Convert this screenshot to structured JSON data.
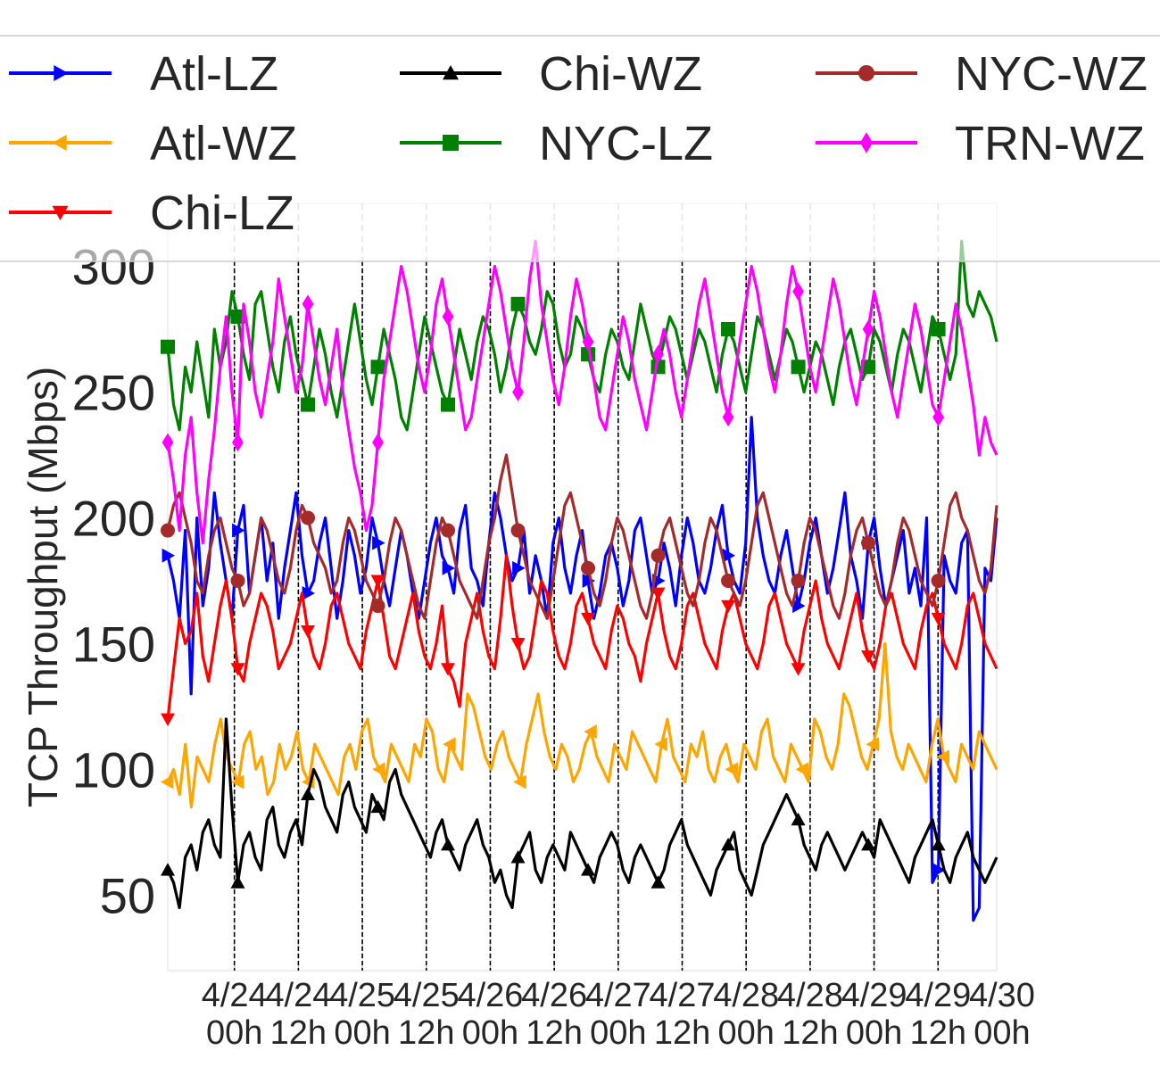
{
  "chart_data": {
    "type": "line",
    "title": "",
    "xlabel": "",
    "ylabel": "TCP Throughput (Mbps)",
    "ylim": [
      20,
      325
    ],
    "yticks": [
      50,
      100,
      150,
      200,
      250,
      300
    ],
    "xticks": [
      {
        "x": 0,
        "line1": "4/24",
        "line2": "00h"
      },
      {
        "x": 12,
        "line1": "4/24",
        "line2": "12h"
      },
      {
        "x": 24,
        "line1": "4/25",
        "line2": "00h"
      },
      {
        "x": 36,
        "line1": "4/25",
        "line2": "12h"
      },
      {
        "x": 48,
        "line1": "4/26",
        "line2": "00h"
      },
      {
        "x": 60,
        "line1": "4/26",
        "line2": "12h"
      },
      {
        "x": 72,
        "line1": "4/27",
        "line2": "00h"
      },
      {
        "x": 84,
        "line1": "4/27",
        "line2": "12h"
      },
      {
        "x": 96,
        "line1": "4/28",
        "line2": "00h"
      },
      {
        "x": 108,
        "line1": "4/28",
        "line2": "12h"
      },
      {
        "x": 120,
        "line1": "4/29",
        "line2": "00h"
      },
      {
        "x": 132,
        "line1": "4/29",
        "line2": "12h"
      },
      {
        "x": 144,
        "line1": "4/30",
        "line2": "00h"
      }
    ],
    "xlim": [
      -12.5,
      143
    ],
    "midnight_lines_x": [
      0,
      12,
      24,
      36,
      48,
      60,
      72,
      84,
      96,
      108,
      120,
      132,
      144
    ],
    "grid": true,
    "legend_position": "top",
    "series": [
      {
        "name": "Atl-LZ",
        "color": "#0000ff",
        "marker": "triangle-right",
        "values": [
          185,
          175,
          160,
          195,
          130,
          200,
          165,
          180,
          210,
          190,
          175,
          160,
          195,
          205,
          170,
          185,
          200,
          175,
          190,
          160,
          180,
          195,
          210,
          185,
          170,
          175,
          190,
          200,
          180,
          160,
          175,
          195,
          185,
          170,
          180,
          200,
          190,
          175,
          165,
          180,
          195,
          185,
          170,
          160,
          175,
          190,
          200,
          185,
          180,
          170,
          195,
          205,
          180,
          175,
          165,
          190,
          210,
          200,
          185,
          175,
          180,
          195,
          170,
          185,
          175,
          160,
          190,
          200,
          180,
          170,
          185,
          195,
          175,
          160,
          170,
          185,
          190,
          180,
          165,
          175,
          195,
          200,
          185,
          170,
          175,
          190,
          180,
          165,
          185,
          200,
          190,
          175,
          170,
          180,
          195,
          205,
          185,
          175,
          170,
          190,
          240,
          200,
          185,
          175,
          170,
          185,
          195,
          180,
          165,
          175,
          190,
          200,
          185,
          170,
          180,
          195,
          210,
          185,
          175,
          160,
          190,
          200,
          180,
          165,
          175,
          185,
          195,
          170,
          180,
          165,
          200,
          55,
          60,
          185,
          175,
          170,
          190,
          195,
          40,
          45,
          180,
          175,
          200
        ]
      },
      {
        "name": "Atl-WZ",
        "color": "#ffa500",
        "marker": "triangle-left",
        "values": [
          95,
          100,
          90,
          110,
          85,
          105,
          100,
          95,
          110,
          120,
          105,
          100,
          95,
          110,
          115,
          100,
          105,
          90,
          95,
          110,
          100,
          105,
          115,
          100,
          95,
          110,
          105,
          100,
          95,
          90,
          105,
          110,
          100,
          115,
          120,
          105,
          100,
          95,
          110,
          105,
          100,
          95,
          110,
          105,
          120,
          115,
          100,
          95,
          110,
          105,
          100,
          130,
          125,
          115,
          105,
          100,
          110,
          115,
          105,
          100,
          95,
          110,
          120,
          130,
          115,
          105,
          100,
          110,
          105,
          95,
          100,
          110,
          115,
          105,
          100,
          95,
          110,
          105,
          100,
          115,
          110,
          105,
          100,
          95,
          110,
          120,
          105,
          100,
          95,
          110,
          105,
          115,
          100,
          95,
          105,
          110,
          100,
          95,
          110,
          105,
          100,
          115,
          120,
          105,
          100,
          95,
          110,
          105,
          100,
          95,
          120,
          115,
          105,
          100,
          110,
          130,
          125,
          115,
          105,
          100,
          110,
          120,
          150,
          115,
          105,
          100,
          110,
          105,
          100,
          95,
          110,
          120,
          105,
          100,
          95,
          110,
          105,
          100,
          115,
          110,
          105,
          100
        ]
      },
      {
        "name": "Chi-LZ",
        "color": "#ff0000",
        "marker": "triangle-down",
        "values": [
          120,
          140,
          160,
          150,
          155,
          170,
          145,
          135,
          150,
          165,
          175,
          160,
          140,
          135,
          150,
          160,
          170,
          165,
          155,
          140,
          145,
          150,
          160,
          170,
          155,
          145,
          140,
          150,
          165,
          170,
          160,
          150,
          145,
          140,
          155,
          165,
          175,
          160,
          145,
          140,
          150,
          160,
          170,
          155,
          145,
          140,
          150,
          165,
          140,
          135,
          125,
          150,
          160,
          170,
          155,
          145,
          140,
          160,
          185,
          165,
          150,
          140,
          145,
          160,
          175,
          170,
          155,
          145,
          140,
          150,
          165,
          170,
          160,
          150,
          145,
          140,
          155,
          165,
          160,
          150,
          145,
          135,
          150,
          160,
          170,
          155,
          145,
          140,
          150,
          165,
          170,
          160,
          150,
          145,
          140,
          155,
          165,
          170,
          160,
          150,
          145,
          140,
          150,
          165,
          170,
          160,
          150,
          145,
          140,
          155,
          165,
          175,
          160,
          150,
          145,
          140,
          150,
          160,
          170,
          155,
          145,
          140,
          150,
          165,
          170,
          160,
          150,
          145,
          140,
          155,
          165,
          170,
          160,
          150,
          145,
          140,
          150,
          165,
          170,
          160,
          150,
          145,
          140
        ]
      },
      {
        "name": "Chi-WZ",
        "color": "#000000",
        "marker": "triangle-up",
        "values": [
          60,
          55,
          45,
          65,
          70,
          60,
          75,
          80,
          70,
          65,
          120,
          85,
          55,
          70,
          75,
          65,
          60,
          80,
          85,
          70,
          65,
          75,
          80,
          70,
          90,
          100,
          95,
          85,
          80,
          75,
          90,
          95,
          85,
          80,
          75,
          90,
          85,
          80,
          95,
          100,
          90,
          85,
          80,
          75,
          70,
          65,
          75,
          80,
          70,
          65,
          60,
          70,
          75,
          80,
          70,
          65,
          55,
          60,
          50,
          45,
          65,
          70,
          75,
          60,
          55,
          65,
          70,
          65,
          60,
          75,
          70,
          65,
          60,
          55,
          65,
          70,
          75,
          70,
          60,
          55,
          65,
          70,
          65,
          60,
          55,
          60,
          70,
          75,
          80,
          70,
          65,
          60,
          55,
          50,
          60,
          65,
          70,
          75,
          60,
          55,
          50,
          60,
          70,
          75,
          80,
          85,
          90,
          85,
          80,
          70,
          65,
          60,
          70,
          75,
          70,
          65,
          60,
          65,
          70,
          75,
          70,
          65,
          80,
          75,
          70,
          65,
          60,
          55,
          65,
          70,
          75,
          80,
          70,
          60,
          55,
          65,
          70,
          75,
          65,
          60,
          55,
          60,
          65
        ]
      },
      {
        "name": "NYC-LZ",
        "color": "#008000",
        "marker": "square",
        "values": [
          268,
          245,
          235,
          260,
          250,
          270,
          255,
          240,
          275,
          260,
          270,
          290,
          280,
          265,
          255,
          285,
          290,
          275,
          260,
          250,
          270,
          280,
          265,
          255,
          245,
          260,
          275,
          265,
          250,
          240,
          255,
          270,
          285,
          270,
          255,
          245,
          260,
          275,
          265,
          255,
          240,
          235,
          250,
          265,
          280,
          270,
          260,
          250,
          245,
          260,
          275,
          265,
          255,
          270,
          280,
          275,
          265,
          250,
          260,
          275,
          285,
          280,
          270,
          265,
          275,
          290,
          285,
          270,
          260,
          265,
          280,
          275,
          265,
          255,
          250,
          265,
          275,
          270,
          260,
          255,
          270,
          285,
          275,
          265,
          260,
          270,
          280,
          275,
          265,
          255,
          265,
          275,
          270,
          260,
          250,
          265,
          275,
          270,
          260,
          250,
          265,
          280,
          275,
          265,
          255,
          265,
          275,
          270,
          260,
          250,
          260,
          270,
          265,
          255,
          245,
          260,
          270,
          275,
          265,
          255,
          260,
          275,
          270,
          260,
          250,
          265,
          275,
          270,
          260,
          250,
          265,
          280,
          275,
          265,
          255,
          265,
          310,
          285,
          280,
          290,
          285,
          280,
          270
        ]
      },
      {
        "name": "NYC-WZ",
        "color": "#a52a2a",
        "marker": "circle",
        "values": [
          195,
          205,
          210,
          200,
          190,
          175,
          170,
          185,
          195,
          200,
          190,
          180,
          175,
          165,
          170,
          185,
          200,
          195,
          185,
          175,
          170,
          180,
          195,
          205,
          200,
          190,
          185,
          180,
          170,
          175,
          190,
          200,
          195,
          185,
          175,
          170,
          165,
          175,
          190,
          200,
          195,
          185,
          175,
          165,
          160,
          175,
          190,
          200,
          195,
          185,
          175,
          170,
          165,
          160,
          175,
          190,
          200,
          215,
          225,
          210,
          195,
          185,
          175,
          170,
          165,
          160,
          175,
          190,
          205,
          210,
          200,
          190,
          180,
          170,
          165,
          175,
          190,
          200,
          195,
          185,
          175,
          165,
          160,
          170,
          185,
          195,
          200,
          190,
          180,
          170,
          165,
          175,
          190,
          200,
          195,
          185,
          175,
          170,
          165,
          175,
          190,
          205,
          210,
          200,
          190,
          180,
          170,
          165,
          175,
          190,
          200,
          195,
          185,
          175,
          165,
          160,
          170,
          185,
          195,
          200,
          190,
          180,
          170,
          165,
          175,
          190,
          200,
          195,
          185,
          175,
          170,
          165,
          175,
          190,
          205,
          210,
          200,
          195,
          185,
          175,
          170,
          180,
          205
        ]
      },
      {
        "name": "TRN-WZ",
        "color": "#ff00ff",
        "marker": "diamond",
        "values": [
          230,
          215,
          195,
          225,
          240,
          210,
          190,
          215,
          235,
          260,
          280,
          250,
          230,
          285,
          270,
          250,
          240,
          255,
          270,
          295,
          280,
          265,
          250,
          260,
          285,
          270,
          255,
          245,
          260,
          275,
          250,
          235,
          220,
          210,
          195,
          205,
          230,
          255,
          270,
          285,
          300,
          290,
          275,
          260,
          250,
          265,
          285,
          295,
          280,
          265,
          250,
          235,
          240,
          255,
          270,
          285,
          300,
          290,
          275,
          260,
          250,
          270,
          295,
          310,
          285,
          270,
          255,
          245,
          260,
          280,
          295,
          285,
          270,
          255,
          240,
          235,
          250,
          265,
          280,
          270,
          255,
          245,
          235,
          250,
          265,
          275,
          265,
          250,
          240,
          255,
          270,
          285,
          295,
          280,
          265,
          250,
          240,
          255,
          270,
          285,
          300,
          290,
          275,
          260,
          250,
          265,
          285,
          300,
          290,
          275,
          260,
          250,
          265,
          280,
          295,
          285,
          270,
          255,
          245,
          260,
          275,
          290,
          280,
          265,
          250,
          240,
          255,
          270,
          285,
          275,
          260,
          245,
          240,
          255,
          270,
          285,
          275,
          260,
          245,
          225,
          240,
          230,
          225
        ]
      }
    ]
  }
}
